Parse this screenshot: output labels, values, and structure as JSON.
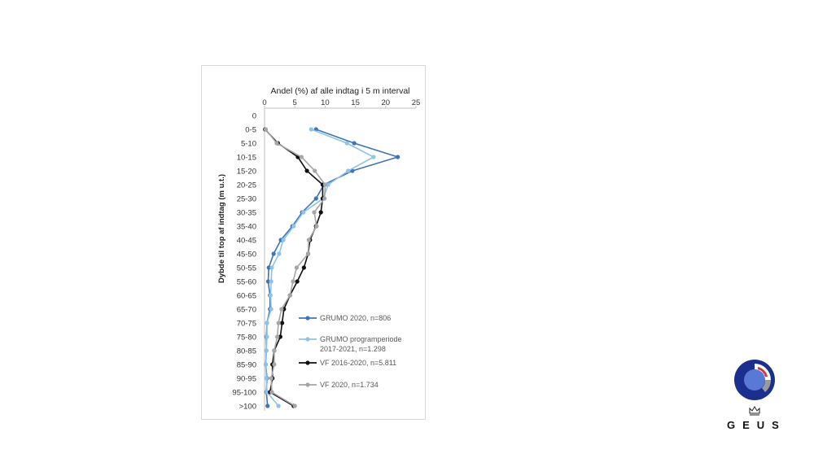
{
  "logo": {
    "text": "GEUS",
    "colors": {
      "outer": "#1b2f8f",
      "inner": "#5a78d6",
      "arc": "#d0353a",
      "ring": "#9a9a9a"
    }
  },
  "chart_data": {
    "type": "line",
    "orientation": "horizontal-values-vertical-categories",
    "title": "Andel (%) af alle indtag i 5 m interval",
    "xlabel": "Andel (%) af alle indtag i 5 m interval",
    "ylabel": "Dybde til top af indtag (m u.t.)",
    "xlim": [
      0,
      25
    ],
    "xticks": [
      0,
      5,
      10,
      15,
      20,
      25
    ],
    "grid": false,
    "legend_position": "bottom-right",
    "categories": [
      "0",
      "0-5",
      "5-10",
      "10-15",
      "15-20",
      "20-25",
      "25-30",
      "30-35",
      "35-40",
      "40-45",
      "45-50",
      "50-55",
      "55-60",
      "60-65",
      "65-70",
      "70-75",
      "75-80",
      "80-85",
      "85-90",
      "90-95",
      "95-100",
      ">100"
    ],
    "series": [
      {
        "name": "GRUMO 2020, n=806",
        "color": "#3f74b6",
        "values": [
          null,
          8.5,
          14.8,
          22.0,
          14.5,
          9.8,
          8.5,
          6.2,
          4.6,
          2.7,
          1.5,
          0.7,
          0.6,
          0.9,
          0.9,
          0.4,
          0.3,
          0.3,
          0.2,
          0.4,
          0.3,
          0.5
        ]
      },
      {
        "name": "GRUMO programperiode 2017-2021, n=1.298",
        "color": "#8fc3e6",
        "values": [
          null,
          7.7,
          13.6,
          18.0,
          13.8,
          10.5,
          9.7,
          6.4,
          4.8,
          3.1,
          2.4,
          1.2,
          1.1,
          1.0,
          1.1,
          0.4,
          0.4,
          0.3,
          0.2,
          0.3,
          0.4,
          2.3
        ]
      },
      {
        "name": "VF 2016-2020, n=5.811",
        "color": "#111111",
        "values": [
          null,
          0.1,
          2.2,
          5.5,
          7.0,
          9.6,
          9.6,
          9.3,
          8.5,
          7.5,
          7.2,
          6.5,
          5.4,
          4.2,
          3.2,
          2.9,
          2.6,
          1.6,
          1.3,
          1.3,
          0.9,
          4.8
        ]
      },
      {
        "name": "VF 2020, n=1.734",
        "color": "#a6a6a6",
        "values": [
          null,
          0.2,
          2.0,
          6.1,
          8.3,
          10.0,
          9.9,
          8.2,
          8.6,
          7.3,
          7.2,
          5.3,
          4.7,
          4.2,
          2.8,
          2.3,
          2.1,
          1.6,
          1.6,
          1.1,
          1.2,
          5.0
        ]
      }
    ]
  }
}
